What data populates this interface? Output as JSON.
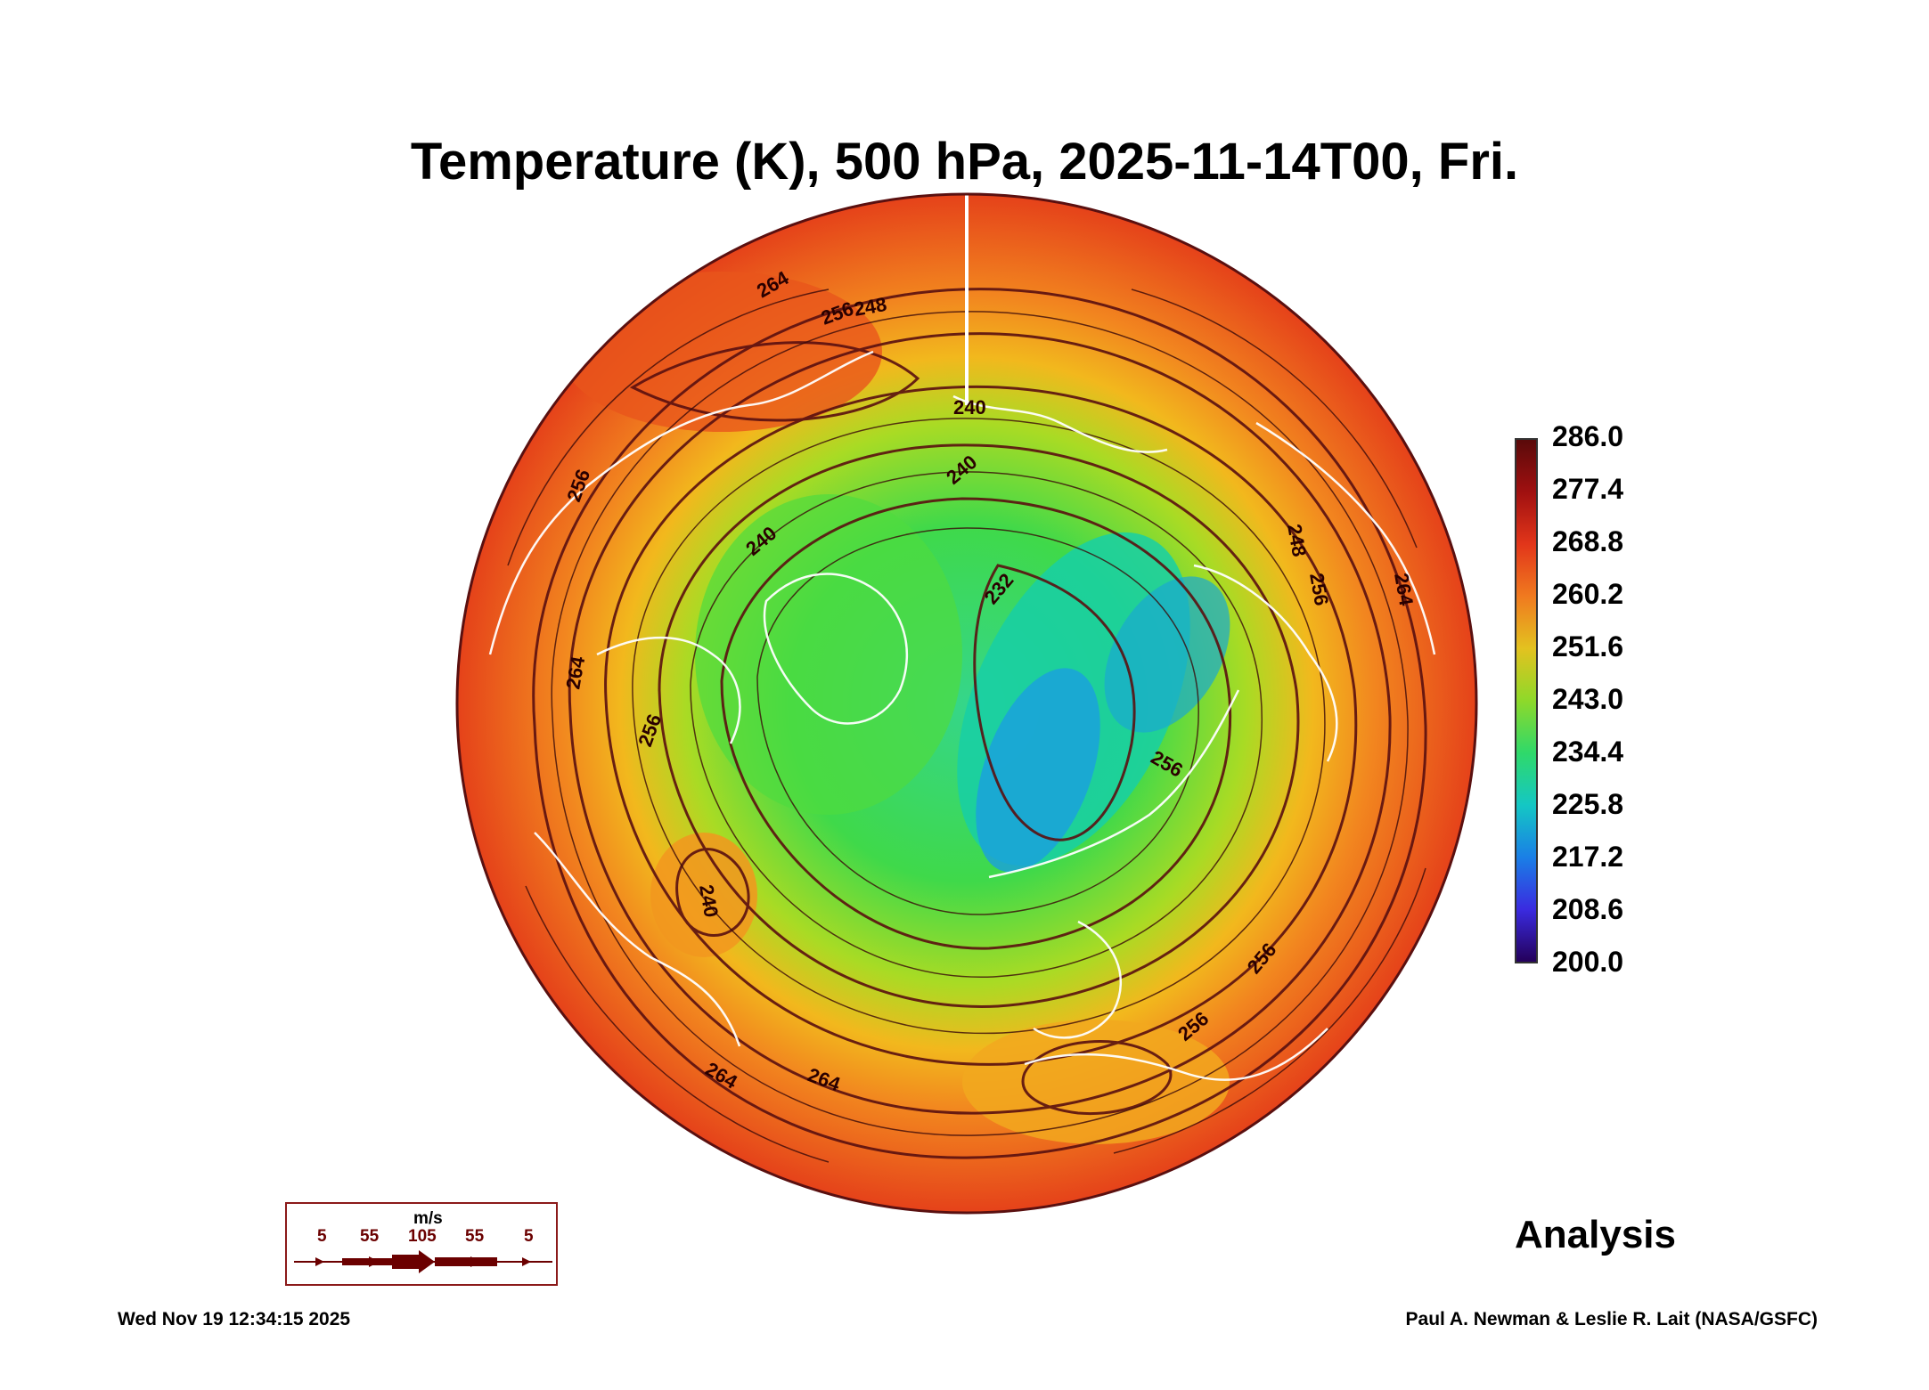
{
  "title": "Temperature (K), 500 hPa, 2025-11-14T00, Fri.",
  "colorbar": {
    "ticks": [
      "286.0",
      "277.4",
      "268.8",
      "260.2",
      "251.6",
      "243.0",
      "234.4",
      "225.8",
      "217.2",
      "208.6",
      "200.0"
    ]
  },
  "contour_labels": [
    "264",
    "256",
    "248",
    "240",
    "240",
    "240",
    "232",
    "248",
    "256",
    "256",
    "264",
    "256",
    "240",
    "264",
    "256",
    "256",
    "264",
    "256",
    "264"
  ],
  "wind_legend": {
    "unit": "m/s",
    "values": [
      "5",
      "55",
      "105",
      "55",
      "5"
    ]
  },
  "mode_label": "Analysis",
  "timestamp": "Wed Nov 19 12:34:15 2025",
  "credit": "Paul A. Newman & Leslie R. Lait (NASA/GSFC)",
  "colors": {
    "warm": "#e8471c",
    "orange": "#f2861f",
    "yellow": "#d9d21f",
    "green": "#3fd94a",
    "cyan": "#17cfa6",
    "blue": "#1a8fe0",
    "contour": "#5a1010",
    "coast": "#ffffff"
  }
}
